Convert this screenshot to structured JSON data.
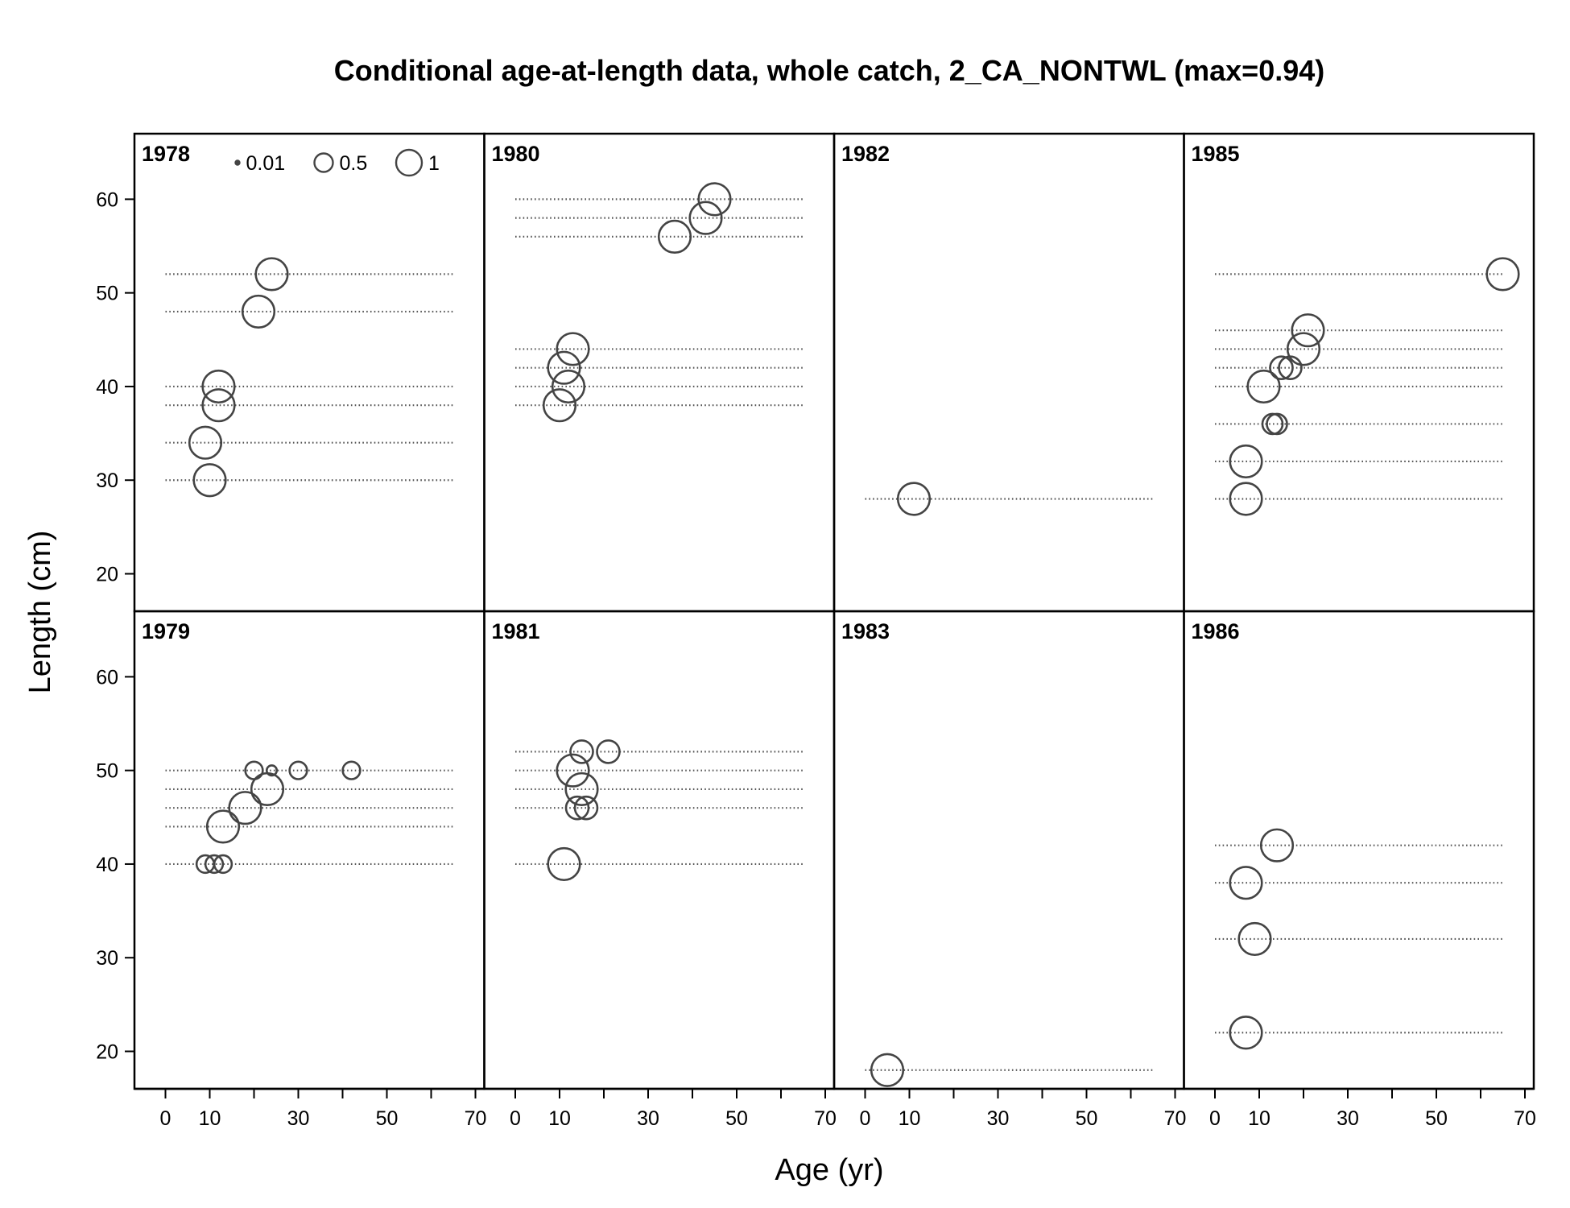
{
  "chart_data": {
    "type": "scatter",
    "title": "Conditional age-at-length data, whole catch, 2_CA_NONTWL (max=0.94)",
    "xlabel": "Age (yr)",
    "ylabel": "Length (cm)",
    "xlim": [
      -7,
      72
    ],
    "ylim": [
      16,
      67
    ],
    "x_ticks": [
      0,
      10,
      20,
      30,
      40,
      50,
      60,
      70
    ],
    "x_tick_labels": [
      "0",
      "10",
      "30",
      "50",
      "70"
    ],
    "x_tick_label_values": [
      0,
      10,
      30,
      50,
      70
    ],
    "y_ticks": [
      20,
      30,
      40,
      50,
      60
    ],
    "line_span": [
      0,
      65
    ],
    "colors": {
      "points": "#444444",
      "lines": "#555555",
      "frame": "#000000"
    },
    "legend": {
      "placement": "top-left of first panel",
      "entries": [
        {
          "label": "0.01",
          "value": 0.01
        },
        {
          "label": "0.5",
          "value": 0.5
        },
        {
          "label": "1",
          "value": 1
        }
      ]
    },
    "panels": [
      {
        "year": "1978",
        "row": 0,
        "col": 0,
        "lines": [
          30,
          34,
          38,
          40,
          48,
          52
        ],
        "points": [
          {
            "age": 10,
            "length": 30,
            "p": 0.5
          },
          {
            "age": 9,
            "length": 34,
            "p": 0.5
          },
          {
            "age": 12,
            "length": 38,
            "p": 0.5
          },
          {
            "age": 12,
            "length": 40,
            "p": 0.5
          },
          {
            "age": 21,
            "length": 48,
            "p": 0.5
          },
          {
            "age": 24,
            "length": 52,
            "p": 0.5
          }
        ]
      },
      {
        "year": "1980",
        "row": 0,
        "col": 1,
        "lines": [
          38,
          40,
          42,
          44,
          56,
          58,
          60
        ],
        "points": [
          {
            "age": 10,
            "length": 38,
            "p": 0.5
          },
          {
            "age": 12,
            "length": 40,
            "p": 0.5
          },
          {
            "age": 11,
            "length": 42,
            "p": 0.5
          },
          {
            "age": 13,
            "length": 44,
            "p": 0.5
          },
          {
            "age": 36,
            "length": 56,
            "p": 0.5
          },
          {
            "age": 43,
            "length": 58,
            "p": 0.5
          },
          {
            "age": 45,
            "length": 60,
            "p": 0.5
          }
        ]
      },
      {
        "year": "1982",
        "row": 0,
        "col": 2,
        "lines": [
          28
        ],
        "points": [
          {
            "age": 11,
            "length": 28,
            "p": 0.5
          }
        ]
      },
      {
        "year": "1985",
        "row": 0,
        "col": 3,
        "lines": [
          28,
          32,
          36,
          40,
          42,
          44,
          46,
          52
        ],
        "points": [
          {
            "age": 7,
            "length": 28,
            "p": 0.5
          },
          {
            "age": 7,
            "length": 32,
            "p": 0.5
          },
          {
            "age": 13,
            "length": 36,
            "p": 0.2
          },
          {
            "age": 14,
            "length": 36,
            "p": 0.2
          },
          {
            "age": 11,
            "length": 40,
            "p": 0.5
          },
          {
            "age": 15,
            "length": 42,
            "p": 0.25
          },
          {
            "age": 17,
            "length": 42,
            "p": 0.25
          },
          {
            "age": 20,
            "length": 44,
            "p": 0.5
          },
          {
            "age": 21,
            "length": 46,
            "p": 0.5
          },
          {
            "age": 65,
            "length": 52,
            "p": 0.5
          }
        ]
      },
      {
        "year": "1979",
        "row": 1,
        "col": 0,
        "lines": [
          40,
          44,
          46,
          48,
          50
        ],
        "points": [
          {
            "age": 9,
            "length": 40,
            "p": 0.15
          },
          {
            "age": 11,
            "length": 40,
            "p": 0.15
          },
          {
            "age": 13,
            "length": 40,
            "p": 0.15
          },
          {
            "age": 13,
            "length": 44,
            "p": 0.5
          },
          {
            "age": 18,
            "length": 46,
            "p": 0.5
          },
          {
            "age": 23,
            "length": 48,
            "p": 0.5
          },
          {
            "age": 20,
            "length": 50,
            "p": 0.15
          },
          {
            "age": 24,
            "length": 50,
            "p": 0.05
          },
          {
            "age": 30,
            "length": 50,
            "p": 0.15
          },
          {
            "age": 42,
            "length": 50,
            "p": 0.15
          }
        ]
      },
      {
        "year": "1981",
        "row": 1,
        "col": 1,
        "lines": [
          40,
          46,
          48,
          50,
          52
        ],
        "points": [
          {
            "age": 11,
            "length": 40,
            "p": 0.5
          },
          {
            "age": 14,
            "length": 46,
            "p": 0.25
          },
          {
            "age": 16,
            "length": 46,
            "p": 0.25
          },
          {
            "age": 15,
            "length": 48,
            "p": 0.5
          },
          {
            "age": 13,
            "length": 50,
            "p": 0.5
          },
          {
            "age": 15,
            "length": 52,
            "p": 0.25
          },
          {
            "age": 21,
            "length": 52,
            "p": 0.25
          }
        ]
      },
      {
        "year": "1983",
        "row": 1,
        "col": 2,
        "lines": [
          18
        ],
        "points": [
          {
            "age": 5,
            "length": 18,
            "p": 0.5
          }
        ]
      },
      {
        "year": "1986",
        "row": 1,
        "col": 3,
        "lines": [
          22,
          32,
          38,
          42
        ],
        "points": [
          {
            "age": 7,
            "length": 22,
            "p": 0.5
          },
          {
            "age": 9,
            "length": 32,
            "p": 0.5
          },
          {
            "age": 7,
            "length": 38,
            "p": 0.5
          },
          {
            "age": 14,
            "length": 42,
            "p": 0.5
          }
        ]
      }
    ]
  }
}
